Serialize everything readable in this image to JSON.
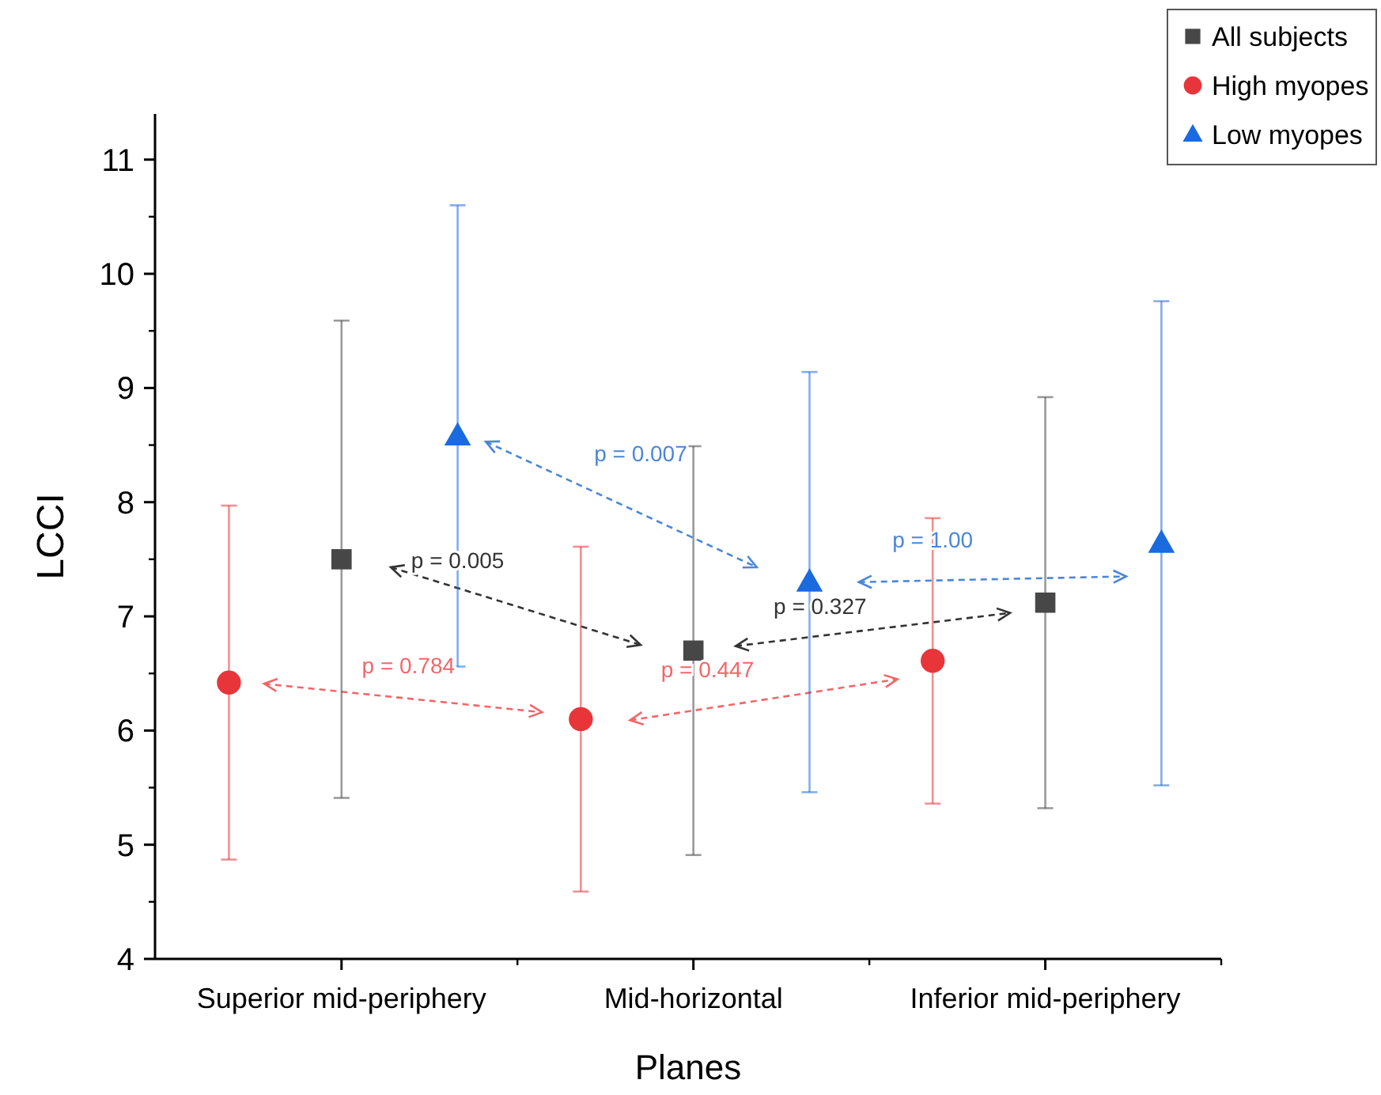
{
  "chart_data": {
    "type": "scatter",
    "xlabel": "Planes",
    "ylabel": "LCCI",
    "categories": [
      "Superior mid-periphery",
      "Mid-horizontal",
      "Inferior mid-periphery"
    ],
    "ylim": [
      4,
      11.4
    ],
    "yticks": [
      4,
      5,
      6,
      7,
      8,
      9,
      10,
      11
    ],
    "grid": false,
    "legend": "top right",
    "series": [
      {
        "name": "All subjects",
        "color": "#474747",
        "marker": "square",
        "values": [
          7.5,
          6.7,
          7.12
        ],
        "errors": [
          2.09,
          1.79,
          1.8
        ]
      },
      {
        "name": "High myopes",
        "color": "#e8353a",
        "marker": "circle",
        "values": [
          6.42,
          6.1,
          6.61
        ],
        "errors": [
          1.55,
          1.51,
          1.25
        ]
      },
      {
        "name": "Low myopes",
        "color": "#1a6ae0",
        "marker": "triangle",
        "values": [
          8.58,
          7.3,
          7.64
        ],
        "errors": [
          2.02,
          1.84,
          2.12
        ]
      }
    ],
    "annotations": [
      "p = 0.007",
      "p = 0.005",
      "p = 0.784",
      "p = 0.447",
      "p = 0.327",
      "p = 1.00"
    ]
  }
}
